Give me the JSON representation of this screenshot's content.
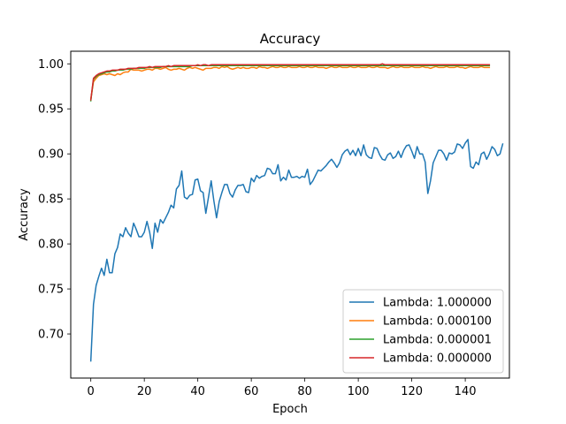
{
  "chart_data": {
    "type": "line",
    "title": "Accuracy",
    "xlabel": "Epoch",
    "ylabel": "Accuracy",
    "xlim": [
      -7.5,
      156.5
    ],
    "ylim": [
      0.651,
      1.014
    ],
    "xticks": [
      0,
      20,
      40,
      60,
      80,
      100,
      120,
      140
    ],
    "yticks": [
      0.7,
      0.75,
      0.8,
      0.85,
      0.9,
      0.95,
      1.0
    ],
    "ytick_labels": [
      "0.70",
      "0.75",
      "0.80",
      "0.85",
      "0.90",
      "0.95",
      "1.00"
    ],
    "grid": false,
    "legend_position": "lower-right",
    "series": [
      {
        "name": "Lambda: 1.000000",
        "color": "#1f77b4",
        "values": [
          0.67,
          0.733,
          0.754,
          0.764,
          0.773,
          0.765,
          0.783,
          0.768,
          0.768,
          0.789,
          0.796,
          0.811,
          0.808,
          0.818,
          0.812,
          0.808,
          0.823,
          0.816,
          0.808,
          0.808,
          0.813,
          0.825,
          0.813,
          0.795,
          0.823,
          0.813,
          0.827,
          0.823,
          0.829,
          0.835,
          0.843,
          0.84,
          0.861,
          0.865,
          0.881,
          0.852,
          0.85,
          0.854,
          0.855,
          0.871,
          0.872,
          0.859,
          0.857,
          0.834,
          0.852,
          0.87,
          0.848,
          0.829,
          0.847,
          0.857,
          0.866,
          0.866,
          0.856,
          0.852,
          0.86,
          0.865,
          0.865,
          0.866,
          0.858,
          0.857,
          0.873,
          0.869,
          0.876,
          0.873,
          0.875,
          0.876,
          0.884,
          0.883,
          0.878,
          0.878,
          0.888,
          0.87,
          0.874,
          0.871,
          0.882,
          0.874,
          0.874,
          0.875,
          0.873,
          0.875,
          0.874,
          0.883,
          0.866,
          0.87,
          0.876,
          0.882,
          0.881,
          0.884,
          0.887,
          0.891,
          0.894,
          0.89,
          0.885,
          0.89,
          0.899,
          0.903,
          0.905,
          0.899,
          0.904,
          0.898,
          0.906,
          0.898,
          0.91,
          0.899,
          0.896,
          0.895,
          0.907,
          0.906,
          0.899,
          0.894,
          0.893,
          0.899,
          0.901,
          0.895,
          0.897,
          0.903,
          0.896,
          0.904,
          0.909,
          0.91,
          0.903,
          0.895,
          0.908,
          0.9,
          0.9,
          0.891,
          0.856,
          0.87,
          0.89,
          0.897,
          0.904,
          0.904,
          0.9,
          0.893,
          0.901,
          0.9,
          0.902,
          0.911,
          0.91,
          0.906,
          0.912,
          0.916,
          0.886,
          0.884,
          0.891,
          0.888,
          0.9,
          0.902,
          0.894,
          0.9,
          0.908,
          0.905,
          0.898,
          0.9,
          0.911
        ]
      },
      {
        "name": "Lambda: 0.000100",
        "color": "#ff7f0e",
        "values": [
          0.961,
          0.98,
          0.984,
          0.987,
          0.988,
          0.989,
          0.988,
          0.989,
          0.988,
          0.987,
          0.989,
          0.988,
          0.99,
          0.991,
          0.991,
          0.994,
          0.993,
          0.993,
          0.993,
          0.992,
          0.993,
          0.994,
          0.994,
          0.993,
          0.995,
          0.995,
          0.994,
          0.995,
          0.996,
          0.994,
          0.993,
          0.994,
          0.994,
          0.995,
          0.994,
          0.993,
          0.995,
          0.996,
          0.995,
          0.996,
          0.995,
          0.994,
          0.993,
          0.995,
          0.995,
          0.995,
          0.996,
          0.996,
          0.995,
          0.997,
          0.996,
          0.997,
          0.995,
          0.994,
          0.995,
          0.996,
          0.995,
          0.996,
          0.995,
          0.995,
          0.996,
          0.996,
          0.995,
          0.997,
          0.996,
          0.996,
          0.995,
          0.996,
          0.997,
          0.996,
          0.996,
          0.997,
          0.996,
          0.996,
          0.997,
          0.996,
          0.996,
          0.996,
          0.997,
          0.996,
          0.996,
          0.997,
          0.996,
          0.996,
          0.997,
          0.996,
          0.996,
          0.996,
          0.995,
          0.996,
          0.997,
          0.996,
          0.996,
          0.997,
          0.996,
          0.996,
          0.996,
          0.997,
          0.996,
          0.996,
          0.997,
          0.996,
          0.996,
          0.996,
          0.997,
          0.996,
          0.996,
          0.997,
          0.996,
          0.996,
          0.996,
          0.995,
          0.996,
          0.997,
          0.996,
          0.996,
          0.997,
          0.996,
          0.996,
          0.996,
          0.997,
          0.996,
          0.996,
          0.996,
          0.997,
          0.996,
          0.996,
          0.995,
          0.996,
          0.997,
          0.996,
          0.996,
          0.996,
          0.997,
          0.996,
          0.996,
          0.996,
          0.997,
          0.996,
          0.996,
          0.995,
          0.996,
          0.997,
          0.996,
          0.996,
          0.996,
          0.997,
          0.996,
          0.996,
          0.996
        ]
      },
      {
        "name": "Lambda: 0.000001",
        "color": "#2ca02c",
        "values": [
          0.959,
          0.983,
          0.986,
          0.988,
          0.989,
          0.99,
          0.991,
          0.991,
          0.992,
          0.992,
          0.993,
          0.993,
          0.993,
          0.994,
          0.994,
          0.994,
          0.995,
          0.995,
          0.995,
          0.995,
          0.995,
          0.996,
          0.996,
          0.996,
          0.996,
          0.996,
          0.996,
          0.997,
          0.997,
          0.997,
          0.997,
          0.997,
          0.997,
          0.997,
          0.997,
          0.997,
          0.997,
          0.997,
          0.998,
          0.998,
          0.998,
          0.998,
          0.998,
          0.998,
          0.998,
          0.998,
          0.998,
          0.998,
          0.998,
          0.998,
          0.998,
          0.998,
          0.998,
          0.998,
          0.998,
          0.998,
          0.998,
          0.998,
          0.998,
          0.998,
          0.998,
          0.998,
          0.998,
          0.998,
          0.998,
          0.998,
          0.998,
          0.998,
          0.998,
          0.998,
          0.998,
          0.998,
          0.998,
          0.998,
          0.998,
          0.998,
          0.998,
          0.998,
          0.998,
          0.998,
          0.998,
          0.998,
          0.998,
          0.998,
          0.998,
          0.998,
          0.998,
          0.998,
          0.998,
          0.998,
          0.998,
          0.998,
          0.998,
          0.998,
          0.998,
          0.998,
          0.998,
          0.998,
          0.998,
          0.998,
          0.998,
          0.998,
          0.998,
          0.998,
          0.998,
          0.998,
          0.998,
          0.998,
          0.998,
          0.998,
          0.998,
          0.998,
          0.998,
          0.998,
          0.998,
          0.998,
          0.998,
          0.998,
          0.998,
          0.998,
          0.998,
          0.998,
          0.998,
          0.998,
          0.998,
          0.998,
          0.998,
          0.998,
          0.998,
          0.998,
          0.998,
          0.998,
          0.998,
          0.998,
          0.998,
          0.998,
          0.998,
          0.998,
          0.998,
          0.998,
          0.998,
          0.998,
          0.998,
          0.998,
          0.998,
          0.998,
          0.998,
          0.998,
          0.998,
          0.998
        ]
      },
      {
        "name": "Lambda: 0.000000",
        "color": "#d62728",
        "values": [
          0.96,
          0.984,
          0.987,
          0.989,
          0.99,
          0.991,
          0.992,
          0.992,
          0.993,
          0.993,
          0.993,
          0.994,
          0.994,
          0.994,
          0.995,
          0.995,
          0.995,
          0.995,
          0.996,
          0.996,
          0.996,
          0.996,
          0.997,
          0.996,
          0.997,
          0.997,
          0.997,
          0.997,
          0.997,
          0.998,
          0.997,
          0.998,
          0.998,
          0.998,
          0.998,
          0.998,
          0.998,
          0.998,
          0.998,
          0.998,
          0.999,
          0.998,
          0.999,
          0.999,
          0.998,
          0.999,
          0.999,
          0.999,
          0.999,
          0.999,
          0.999,
          0.999,
          0.999,
          0.999,
          0.999,
          0.999,
          0.999,
          0.999,
          0.999,
          0.999,
          0.999,
          0.999,
          0.999,
          0.999,
          0.999,
          0.999,
          0.999,
          0.999,
          0.999,
          0.999,
          0.999,
          0.999,
          0.999,
          0.999,
          0.999,
          0.999,
          0.999,
          0.999,
          0.999,
          0.999,
          0.999,
          0.999,
          0.999,
          0.999,
          0.999,
          0.999,
          0.999,
          0.999,
          0.999,
          0.999,
          0.999,
          0.999,
          0.999,
          0.999,
          0.999,
          0.999,
          0.999,
          0.999,
          0.999,
          0.999,
          0.999,
          0.999,
          0.999,
          0.999,
          0.999,
          0.999,
          0.999,
          0.999,
          0.999,
          1.0,
          0.999,
          0.999,
          0.999,
          0.999,
          0.999,
          0.999,
          0.999,
          0.999,
          0.999,
          0.999,
          0.999,
          0.999,
          0.999,
          0.999,
          0.999,
          0.999,
          0.999,
          0.999,
          0.999,
          0.999,
          0.999,
          0.999,
          0.999,
          0.999,
          0.999,
          0.999,
          0.999,
          0.999,
          0.999,
          0.999,
          0.999,
          0.999,
          0.999,
          0.999,
          0.999,
          0.999,
          0.999,
          0.999,
          0.999,
          0.999
        ]
      }
    ]
  }
}
